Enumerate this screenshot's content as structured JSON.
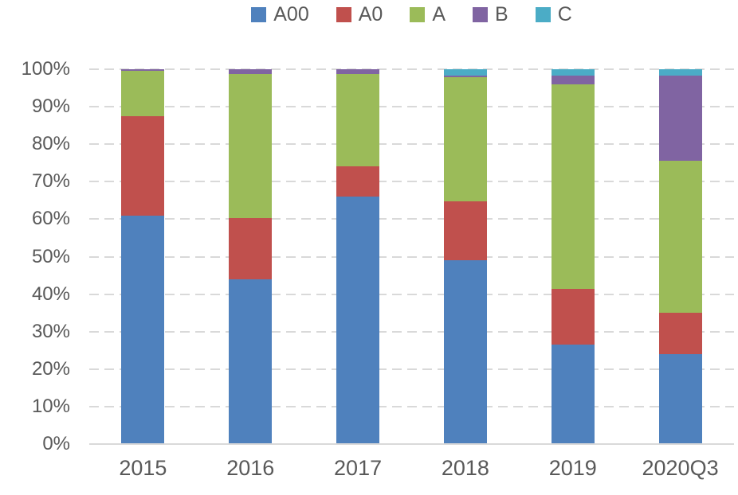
{
  "chart_data": {
    "type": "bar",
    "variant": "stacked-100-percent-column",
    "title": "",
    "xlabel": "",
    "ylabel": "",
    "categories": [
      "2015",
      "2016",
      "2017",
      "2018",
      "2019",
      "2020Q3"
    ],
    "series": [
      {
        "name": "A00",
        "color": "#4F81BD",
        "values": [
          61,
          44,
          66,
          49,
          26.5,
          24
        ]
      },
      {
        "name": "A0",
        "color": "#C0504D",
        "values": [
          26.5,
          16.3,
          8,
          15.7,
          14.8,
          11
        ]
      },
      {
        "name": "A",
        "color": "#9BBB59",
        "values": [
          12,
          38.5,
          24.8,
          33.2,
          54.7,
          40.5
        ]
      },
      {
        "name": "B",
        "color": "#8064A2",
        "values": [
          0.5,
          1.2,
          1.2,
          0.5,
          2.3,
          22.8
        ]
      },
      {
        "name": "C",
        "color": "#4BACC6",
        "values": [
          0,
          0,
          0,
          1.6,
          1.7,
          1.7
        ]
      }
    ],
    "units": "percent",
    "ylim": [
      0,
      100
    ],
    "y_tick_step": 10,
    "y_tick_labels": [
      "0%",
      "10%",
      "20%",
      "30%",
      "40%",
      "50%",
      "60%",
      "70%",
      "80%",
      "90%",
      "100%"
    ],
    "grid": "horizontal-dashed",
    "gridline_color": "#D9D9D9",
    "axis_text_color": "#595959",
    "legend_position": "top-center"
  }
}
